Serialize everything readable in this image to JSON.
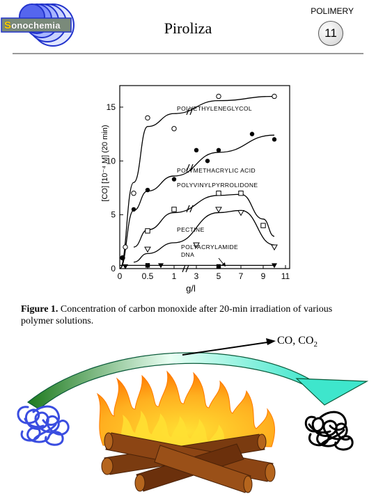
{
  "header": {
    "logo_text_first": "S",
    "logo_text_rest": "onochemia",
    "title": "Piroliza",
    "section": "POLIMERY",
    "page_number": "11"
  },
  "caption": {
    "figure_label": "Figure 1.",
    "text": "Concentration of carbon monoxide after 20-min irradiation of various polymer solutions."
  },
  "diagram": {
    "products_label": "CO, CO",
    "products_subscript": "2"
  },
  "chart_data": {
    "type": "scatter",
    "xlabel": "g/l",
    "ylabel": "[CO] [10⁻⁴ M] (20 min)",
    "x_ticks": [
      "0",
      "0.5",
      "1",
      "3",
      "5",
      "7",
      "9",
      "11"
    ],
    "y_ticks": [
      "0",
      "5",
      "10",
      "15"
    ],
    "ylim": [
      0,
      17
    ],
    "x_axis_break": "between 1 and 3 g/l",
    "series": [
      {
        "name": "POLYETHYLENEGLYCOL",
        "marker": "open-circle",
        "points": [
          [
            0.05,
            1.0
          ],
          [
            0.1,
            2.0
          ],
          [
            0.25,
            7.0
          ],
          [
            0.5,
            14.0
          ],
          [
            1.0,
            13.0
          ],
          [
            5.0,
            16.0
          ],
          [
            10.0,
            16.0
          ]
        ]
      },
      {
        "name": "POLYMETHACRYLIC ACID",
        "marker": "filled-circle",
        "points": [
          [
            0.05,
            1.0
          ],
          [
            0.25,
            5.5
          ],
          [
            0.5,
            7.3
          ],
          [
            1.0,
            8.3
          ],
          [
            3.0,
            11.0
          ],
          [
            4.0,
            10.0
          ],
          [
            5.0,
            11.0
          ],
          [
            8.0,
            12.5
          ],
          [
            10.0,
            12.0
          ]
        ]
      },
      {
        "name": "POLYVINYLPYRROLIDONE",
        "marker": "open-square",
        "points": [
          [
            0.5,
            3.5
          ],
          [
            1.0,
            5.5
          ],
          [
            5.0,
            7.0
          ],
          [
            7.0,
            7.0
          ],
          [
            9.0,
            4.0
          ]
        ]
      },
      {
        "name": "PECTINE",
        "marker": "open-triangle-down",
        "points": [
          [
            0.5,
            1.8
          ],
          [
            3.0,
            2.2
          ],
          [
            5.0,
            5.5
          ],
          [
            7.0,
            5.2
          ],
          [
            10.0,
            2.0
          ]
        ]
      },
      {
        "name": "POLYACRYLAMIDE",
        "marker": "filled-triangle-down",
        "points": [
          [
            0.1,
            0.2
          ],
          [
            0.75,
            0.3
          ],
          [
            10.0,
            0.3
          ]
        ]
      },
      {
        "name": "DNA",
        "marker": "filled-square",
        "points": [
          [
            0.5,
            0.3
          ],
          [
            5.0,
            0.2
          ]
        ]
      }
    ]
  },
  "colors": {
    "logo_blue": "#2233cc",
    "arrow_gradient_start": "#1e7a1e",
    "arrow_gradient_end": "#3ee6cc",
    "flame_outer": "#ff9a10",
    "flame_inner": "#ffe033",
    "wood": "#7a3b10",
    "blue_polymer": "#3a4de0",
    "black_polymer": "#000000"
  },
  "icons": [
    "sonochemia-logo",
    "fire-icon",
    "wood-logs-icon",
    "polymer-coil-blue-icon",
    "polymer-coil-black-icon",
    "curved-arrow-icon",
    "product-arrow-icon"
  ]
}
